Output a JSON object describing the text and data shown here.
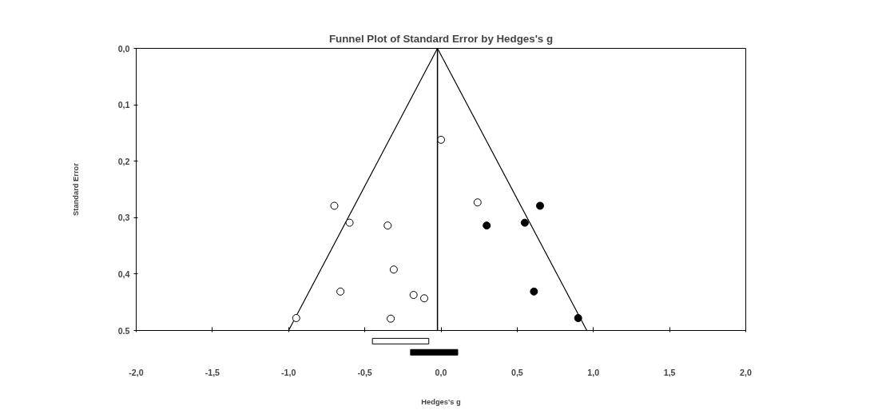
{
  "chart_data": [
    {
      "type": "scatter",
      "title": "Funnel Plot of Standard Error by Hedges's g",
      "ylabel": "Standard Error",
      "xlim": [
        -2,
        2
      ],
      "xticks": [
        {
          "value": -2,
          "label": null
        },
        {
          "value": -1.5,
          "label": null
        },
        {
          "value": -1,
          "label": null
        },
        {
          "value": -0.5,
          "label": null
        },
        {
          "value": 0,
          "label": null
        },
        {
          "value": 0.5,
          "label": null
        },
        {
          "value": 1,
          "label": null
        },
        {
          "value": 1.5,
          "label": null
        },
        {
          "value": 2,
          "label": null
        }
      ],
      "ylim": [
        0.5,
        0
      ],
      "yticks": [
        {
          "value": 0,
          "label": "0,0"
        },
        {
          "value": 0.1,
          "label": "0,1"
        },
        {
          "value": 0.2,
          "label": "0,2"
        },
        {
          "value": 0.3,
          "label": "0,3"
        },
        {
          "value": 0.4,
          "label": "0,4"
        },
        {
          "value": 0.5,
          "label": "0,5"
        }
      ],
      "tick_labels": "y",
      "grid": false,
      "marker": "circle",
      "ref_lines": [
        {
          "axis": "x",
          "value": -0.023,
          "color": "#000000"
        }
      ],
      "series": [
        {
          "type": "line",
          "marker": "none",
          "color": "#000000",
          "x": [
            -1.0,
            -0.023,
            0.957
          ],
          "values": [
            0.5,
            0,
            0.5
          ]
        },
        {
          "color": "#ffffff",
          "x": [
            0.0,
            -0.7,
            -0.6,
            -0.35,
            -0.31,
            -0.66,
            -0.18,
            -0.11,
            -0.95,
            -0.33,
            0.24
          ],
          "values": [
            0.162,
            0.279,
            0.309,
            0.314,
            0.392,
            0.431,
            0.437,
            0.443,
            0.478,
            0.479,
            0.273
          ]
        },
        {
          "color": "#000000",
          "x": [
            0.65,
            0.3,
            0.55,
            0.61,
            0.9
          ],
          "values": [
            0.279,
            0.314,
            0.309,
            0.431,
            0.478
          ]
        }
      ]
    },
    {
      "type": "bar",
      "orientation": "horizontal",
      "xlabel": "Hedges's g",
      "categories": [
        null,
        null
      ],
      "base": [
        -0.45,
        -0.2
      ],
      "values": [
        0.37,
        0.31
      ],
      "colors": [
        "#ffffff",
        "#000000"
      ],
      "xlim": [
        -2,
        2
      ],
      "xticks": [
        {
          "value": -2,
          "label": "-2,0"
        },
        {
          "value": -1.5,
          "label": "-1,5"
        },
        {
          "value": -1,
          "label": "-1,0"
        },
        {
          "value": -0.5,
          "label": "-0,5"
        },
        {
          "value": 0,
          "label": "0,0"
        },
        {
          "value": 0.5,
          "label": "0,5"
        },
        {
          "value": 1,
          "label": "1,0"
        },
        {
          "value": 1.5,
          "label": "1,5"
        },
        {
          "value": 2,
          "label": "2,0"
        }
      ],
      "tick_labels": "x"
    }
  ]
}
